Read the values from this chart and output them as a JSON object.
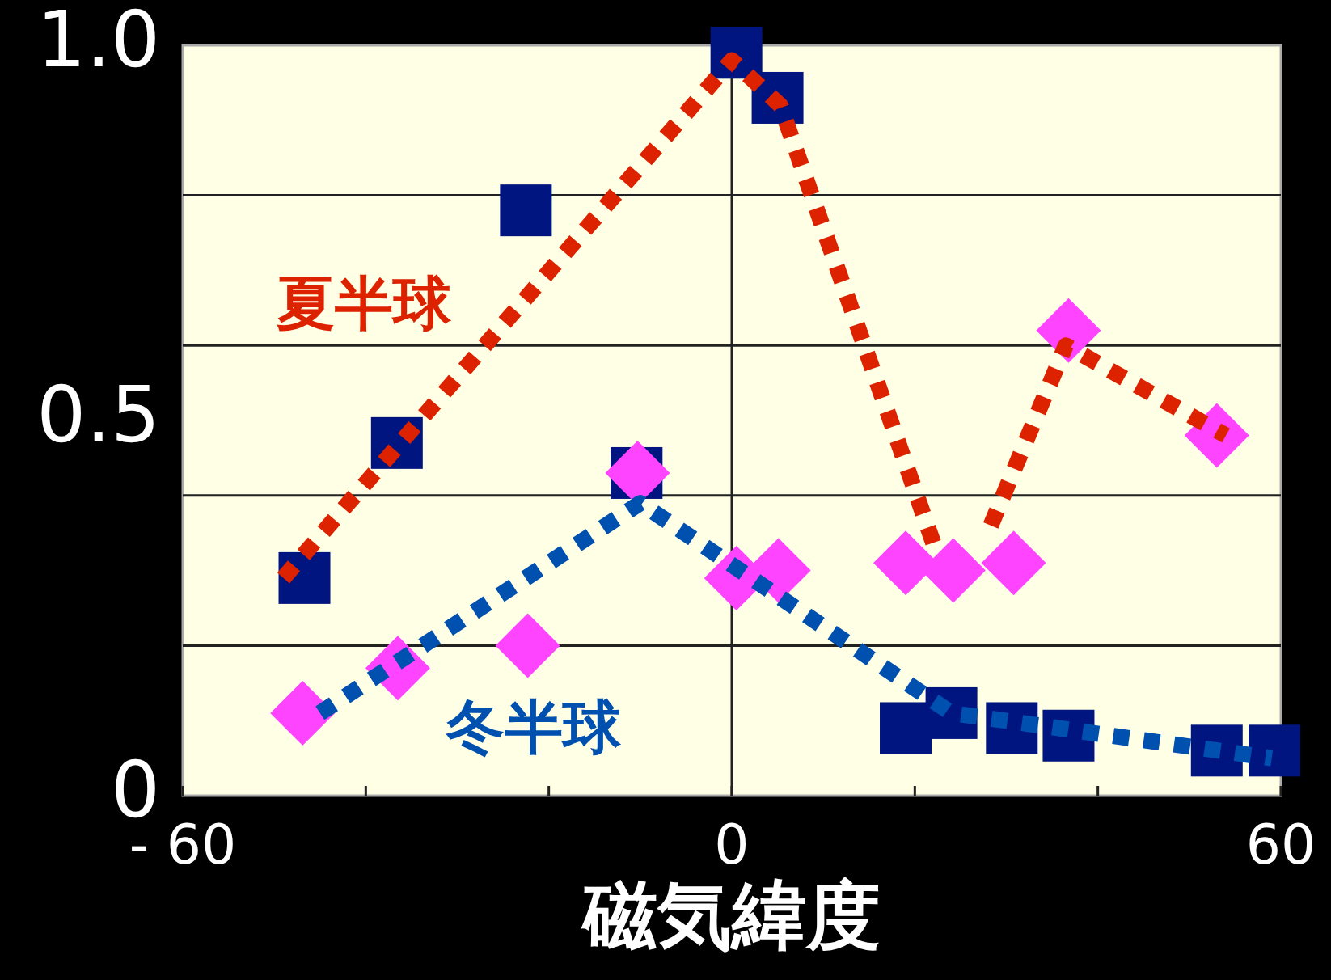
{
  "chart_data": {
    "type": "scatter",
    "xlabel": "磁気緯度",
    "xlim": [
      -60,
      60
    ],
    "xticks": [
      {
        "value": -60,
        "label": "- 60"
      },
      {
        "value": -40,
        "label": null
      },
      {
        "value": -20,
        "label": null
      },
      0,
      {
        "value": 20,
        "label": null
      },
      {
        "value": 40,
        "label": null
      },
      60
    ],
    "ylim": [
      0,
      1
    ],
    "yticks": [
      0,
      {
        "value": 0.2,
        "label": null
      },
      {
        "value": 0.4,
        "label": null
      },
      0.5,
      {
        "value": 0.6,
        "label": null
      },
      {
        "value": 0.8,
        "label": null
      },
      {
        "value": 1,
        "label": "1.0"
      }
    ],
    "grid": "y",
    "ref_lines": [
      {
        "axis": "x",
        "value": 0,
        "color": "#222222"
      }
    ],
    "series": [
      {
        "marker": "square",
        "color": "#001580",
        "x": [
          -46.7,
          -36.6,
          -22.5,
          -10.4,
          0.5,
          5,
          19,
          24,
          30.6,
          36.8,
          53,
          59.3
        ],
        "values": [
          0.29,
          0.47,
          0.78,
          0.43,
          0.99,
          0.93,
          0.09,
          0.11,
          0.09,
          0.08,
          0.06,
          0.06
        ]
      },
      {
        "marker": "diamond",
        "color": "#ff44ff",
        "x": [
          -46.9,
          -36.5,
          -22.3,
          -10.3,
          0.5,
          5.1,
          19,
          24.2,
          30.8,
          36.8,
          53
        ],
        "values": [
          0.11,
          0.17,
          0.2,
          0.43,
          0.29,
          0.3,
          0.31,
          0.3,
          0.31,
          0.62,
          0.48
        ]
      },
      {
        "type": "line",
        "name": "夏半球",
        "color": "#dd2200",
        "marker": "none",
        "line_style": "dotted",
        "x": [
          -49,
          0,
          5.3,
          22.5,
          25,
          28.3,
          36.5,
          54
        ],
        "values": [
          0.29,
          0.98,
          0.92,
          0.32,
          null,
          0.36,
          0.6,
          0.48
        ]
      },
      {
        "type": "line",
        "name": "冬半球",
        "color": "#0050b0",
        "marker": "none",
        "line_style": "dotted",
        "x": [
          -45,
          -10,
          24,
          59
        ],
        "values": [
          0.11,
          0.39,
          0.11,
          0.05
        ]
      }
    ]
  }
}
